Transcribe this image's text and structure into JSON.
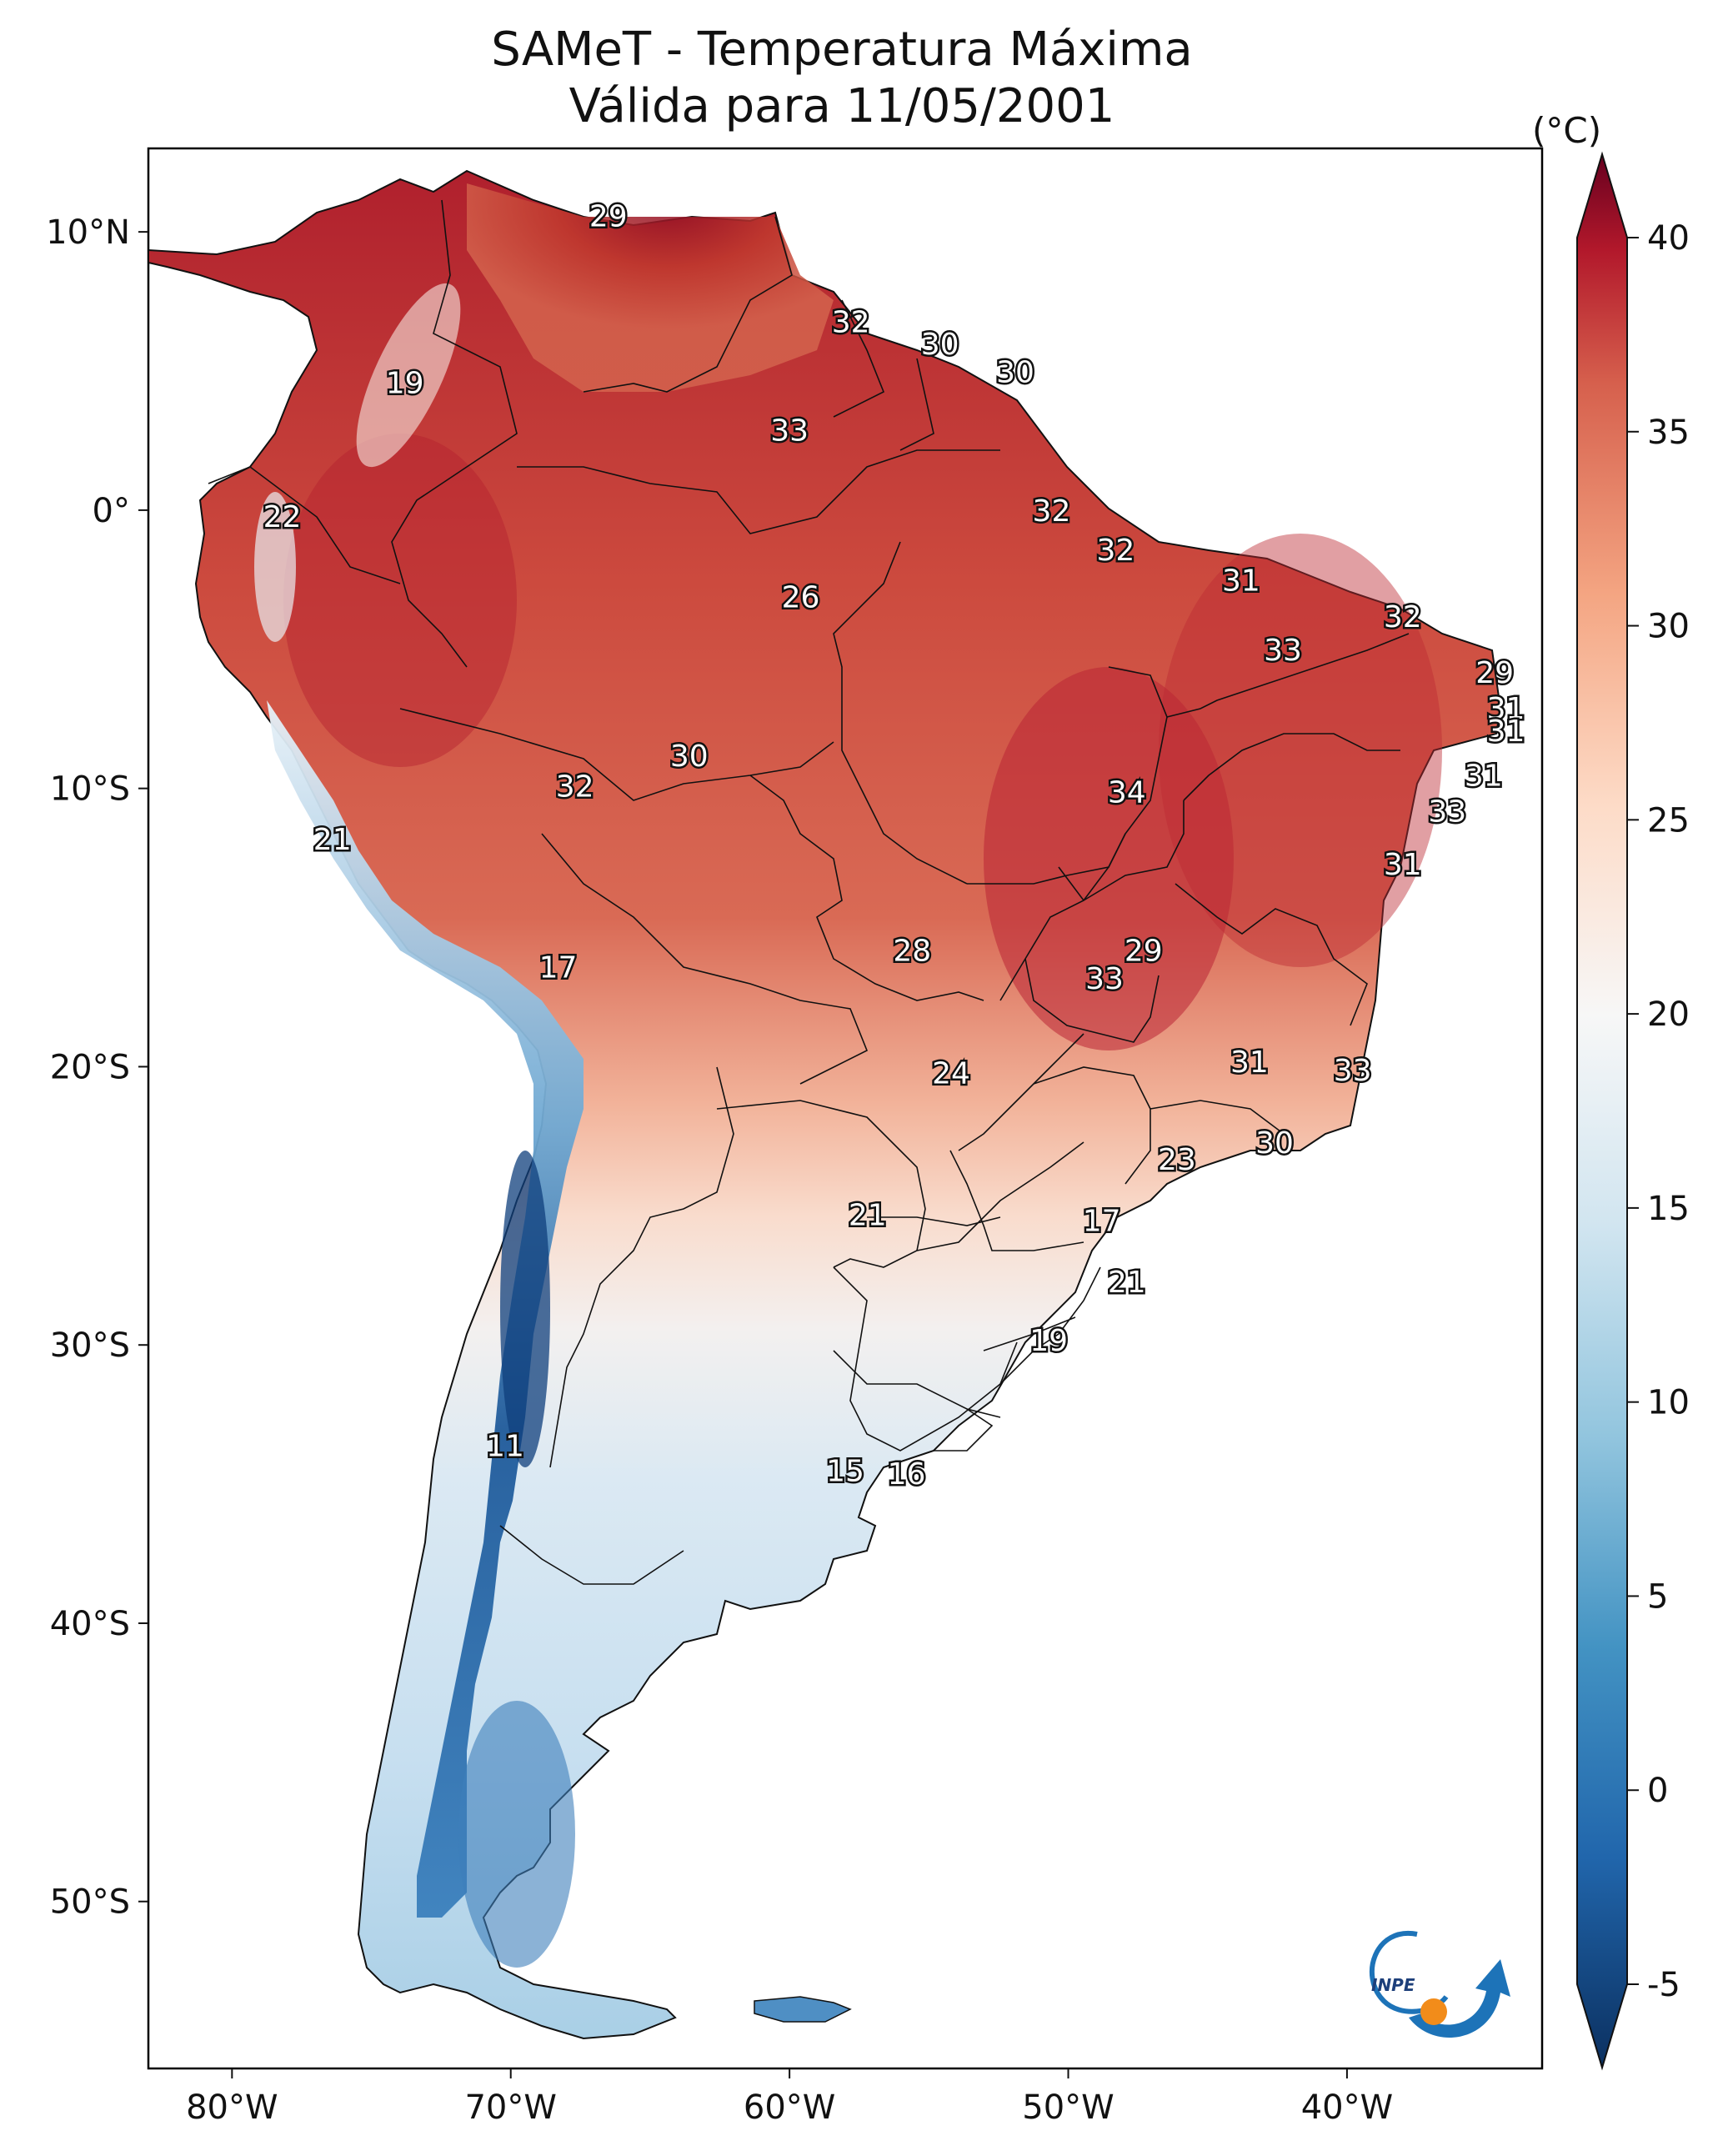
{
  "title": {
    "line1": "SAMeT - Temperatura Máxima",
    "line2": "Válida para 11/05/2001"
  },
  "colorbar": {
    "unit": "(°C)",
    "min": -5,
    "max": 40,
    "ticks": [
      "-5",
      "0",
      "5",
      "10",
      "15",
      "20",
      "25",
      "30",
      "35",
      "40"
    ],
    "colors": [
      "#0b3060",
      "#2166ac",
      "#4393c3",
      "#92c5de",
      "#d1e5f0",
      "#f7f7f7",
      "#fddbc7",
      "#f4a582",
      "#d6604d",
      "#b2182b",
      "#67001f"
    ]
  },
  "axes": {
    "lon_labels": [
      "80°W",
      "70°W",
      "60°W",
      "50°W",
      "40°W"
    ],
    "lat_labels": [
      "10°N",
      "0°",
      "10°S",
      "20°S",
      "30°S",
      "40°S",
      "50°S"
    ]
  },
  "contour_labels": [
    {
      "text": "29",
      "lon": -66.5,
      "lat": 10.5
    },
    {
      "text": "32",
      "lon": -57.8,
      "lat": 6.7
    },
    {
      "text": "30",
      "lon": -54.6,
      "lat": 5.9
    },
    {
      "text": "30",
      "lon": -51.9,
      "lat": 4.9
    },
    {
      "text": "19",
      "lon": -73.8,
      "lat": 4.5
    },
    {
      "text": "33",
      "lon": -60.0,
      "lat": 2.8
    },
    {
      "text": "22",
      "lon": -78.2,
      "lat": -0.3
    },
    {
      "text": "32",
      "lon": -50.6,
      "lat": -0.1
    },
    {
      "text": "32",
      "lon": -48.3,
      "lat": -1.5
    },
    {
      "text": "31",
      "lon": -43.8,
      "lat": -2.6
    },
    {
      "text": "32",
      "lon": -38.0,
      "lat": -3.9
    },
    {
      "text": "26",
      "lon": -59.6,
      "lat": -3.2
    },
    {
      "text": "33",
      "lon": -42.3,
      "lat": -5.1
    },
    {
      "text": "29",
      "lon": -34.7,
      "lat": -5.9
    },
    {
      "text": "31",
      "lon": -34.3,
      "lat": -7.2
    },
    {
      "text": "31",
      "lon": -34.3,
      "lat": -8.0
    },
    {
      "text": "30",
      "lon": -63.6,
      "lat": -8.9
    },
    {
      "text": "32",
      "lon": -67.7,
      "lat": -10.0
    },
    {
      "text": "31",
      "lon": -35.1,
      "lat": -9.6
    },
    {
      "text": "34",
      "lon": -47.9,
      "lat": -10.2
    },
    {
      "text": "33",
      "lon": -36.4,
      "lat": -10.9
    },
    {
      "text": "21",
      "lon": -76.4,
      "lat": -11.9
    },
    {
      "text": "31",
      "lon": -38.0,
      "lat": -12.8
    },
    {
      "text": "28",
      "lon": -55.6,
      "lat": -15.9
    },
    {
      "text": "29",
      "lon": -47.3,
      "lat": -15.9
    },
    {
      "text": "17",
      "lon": -68.3,
      "lat": -16.5
    },
    {
      "text": "33",
      "lon": -48.7,
      "lat": -16.9
    },
    {
      "text": "31",
      "lon": -43.5,
      "lat": -19.9
    },
    {
      "text": "33",
      "lon": -39.8,
      "lat": -20.2
    },
    {
      "text": "24",
      "lon": -54.2,
      "lat": -20.3
    },
    {
      "text": "30",
      "lon": -42.6,
      "lat": -22.8
    },
    {
      "text": "23",
      "lon": -46.1,
      "lat": -23.4
    },
    {
      "text": "21",
      "lon": -57.2,
      "lat": -25.4
    },
    {
      "text": "17",
      "lon": -48.8,
      "lat": -25.6
    },
    {
      "text": "21",
      "lon": -47.9,
      "lat": -27.8
    },
    {
      "text": "19",
      "lon": -50.7,
      "lat": -29.9
    },
    {
      "text": "11",
      "lon": -70.2,
      "lat": -33.7
    },
    {
      "text": "15",
      "lon": -58.0,
      "lat": -34.6
    },
    {
      "text": "16",
      "lon": -55.8,
      "lat": -34.7
    }
  ],
  "logo": {
    "text": "INPE"
  }
}
